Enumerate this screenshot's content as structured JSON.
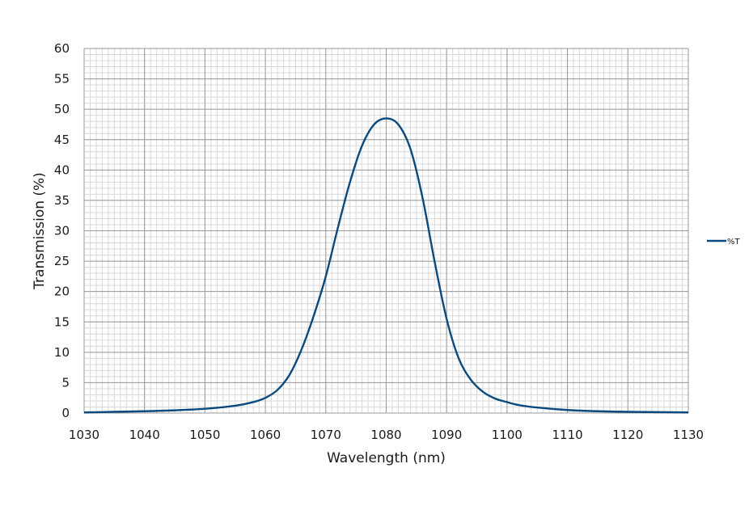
{
  "chart_data": {
    "type": "line",
    "title": "",
    "xlabel": "Wavelength (nm)",
    "ylabel": "Transmission (%)",
    "xlim": [
      1030,
      1130
    ],
    "ylim": [
      0,
      60
    ],
    "xticks": [
      1030,
      1040,
      1050,
      1060,
      1070,
      1080,
      1090,
      1100,
      1110,
      1120,
      1130
    ],
    "yticks": [
      0,
      5,
      10,
      15,
      20,
      25,
      30,
      35,
      40,
      45,
      50,
      55,
      60
    ],
    "x_tick_labels": [
      "1030",
      "1040",
      "1050",
      "1060",
      "1070",
      "1080",
      "1090",
      "1100",
      "1110",
      "1120",
      "1130"
    ],
    "y_tick_labels": [
      "0",
      "5",
      "10",
      "15",
      "20",
      "25",
      "30",
      "35",
      "40",
      "45",
      "50",
      "55",
      "60"
    ],
    "grid": true,
    "legend_position": "right",
    "series": [
      {
        "name": "%T",
        "color": "#0a4a7e",
        "x": [
          1030,
          1035,
          1040,
          1045,
          1050,
          1055,
          1058,
          1060,
          1062,
          1064,
          1066,
          1068,
          1070,
          1072,
          1074,
          1076,
          1078,
          1080,
          1082,
          1084,
          1086,
          1088,
          1090,
          1092,
          1094,
          1096,
          1098,
          1100,
          1102,
          1105,
          1110,
          1115,
          1120,
          1125,
          1130
        ],
        "y": [
          0.1,
          0.2,
          0.3,
          0.45,
          0.7,
          1.2,
          1.8,
          2.5,
          3.8,
          6.3,
          10.5,
          16.0,
          22.5,
          30.5,
          38.0,
          44.0,
          47.5,
          48.5,
          47.5,
          43.5,
          35.5,
          25.0,
          15.5,
          9.0,
          5.5,
          3.5,
          2.4,
          1.8,
          1.3,
          0.9,
          0.5,
          0.3,
          0.2,
          0.15,
          0.1
        ]
      }
    ]
  }
}
